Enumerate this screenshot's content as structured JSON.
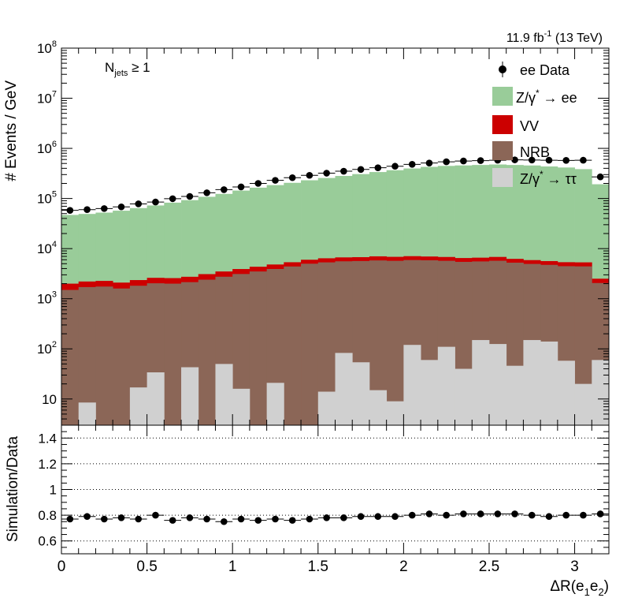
{
  "header": {
    "lumi_main": "11.9 fb",
    "lumi_exp": "-1",
    "lumi_energy": " (13 TeV)"
  },
  "annotation": {
    "njets_N": "N",
    "njets_sub": "jets",
    "njets_rest": " ≥ 1"
  },
  "legend": {
    "data": "ee Data",
    "zee_pre": "Z/γ",
    "zee_sup": "*",
    "zee_post": " → ee",
    "vv": "VV",
    "nrb": "NRB",
    "ztt_pre": "Z/γ",
    "ztt_sup": "*",
    "ztt_post": " → ττ"
  },
  "colors": {
    "zee": "#99cc99",
    "vv": "#cc0000",
    "nrb": "#8b6657",
    "ztt": "#d0d0d0",
    "data": "#000000"
  },
  "chart_data": [
    {
      "type": "bar",
      "stacked": true,
      "log_y": true,
      "title": "",
      "ylabel": "# Events / GeV",
      "xlim": [
        0,
        3.2
      ],
      "ylim": [
        3,
        100000000
      ],
      "y_ticks": [
        {
          "value": 10,
          "label": "10"
        },
        {
          "value": 100,
          "base": "10",
          "exp": "2"
        },
        {
          "value": 1000,
          "base": "10",
          "exp": "3"
        },
        {
          "value": 10000,
          "base": "10",
          "exp": "4"
        },
        {
          "value": 100000,
          "base": "10",
          "exp": "5"
        },
        {
          "value": 1000000,
          "base": "10",
          "exp": "6"
        },
        {
          "value": 10000000,
          "base": "10",
          "exp": "7"
        },
        {
          "value": 100000000,
          "base": "10",
          "exp": "8"
        }
      ],
      "bin_edges": [
        0,
        0.1,
        0.2,
        0.3,
        0.4,
        0.5,
        0.6,
        0.7,
        0.8,
        0.9,
        1.0,
        1.1,
        1.2,
        1.3,
        1.4,
        1.5,
        1.6,
        1.7,
        1.8,
        1.9,
        2.0,
        2.1,
        2.2,
        2.3,
        2.4,
        2.5,
        2.6,
        2.7,
        2.8,
        2.9,
        3.0,
        3.1,
        3.2
      ],
      "series": [
        {
          "name": "Z/γ* → ττ",
          "key": "ztt",
          "values": [
            0,
            8.5,
            0,
            0,
            17,
            34,
            0,
            43,
            0,
            50,
            16,
            0,
            21,
            0,
            0,
            14,
            83,
            54,
            15,
            9,
            120,
            60,
            110,
            40,
            150,
            125,
            46,
            150,
            140,
            58,
            20,
            60
          ]
        },
        {
          "name": "NRB",
          "key": "nrb",
          "values": [
            1500,
            1700,
            1750,
            1600,
            1800,
            2000,
            2000,
            2100,
            2400,
            2700,
            3100,
            3500,
            3900,
            4400,
            5000,
            5300,
            5500,
            5600,
            5800,
            5700,
            5800,
            5800,
            5600,
            5400,
            5400,
            5600,
            5200,
            4800,
            4600,
            4400,
            4400,
            2000
          ]
        },
        {
          "name": "VV",
          "key": "vv",
          "values": [
            500,
            500,
            520,
            500,
            540,
            580,
            580,
            600,
            700,
            750,
            800,
            850,
            900,
            950,
            1000,
            1100,
            1100,
            1100,
            1200,
            1150,
            1150,
            1100,
            1100,
            1050,
            1050,
            1100,
            1000,
            950,
            900,
            900,
            900,
            450
          ]
        },
        {
          "name": "Z/γ* → ee",
          "key": "zee",
          "values": [
            45000,
            47000,
            50000,
            55000,
            62000,
            70000,
            80000,
            90000,
            105000,
            120000,
            140000,
            160000,
            180000,
            200000,
            225000,
            250000,
            275000,
            300000,
            330000,
            360000,
            390000,
            420000,
            440000,
            450000,
            460000,
            470000,
            460000,
            450000,
            430000,
            410000,
            380000,
            190000
          ]
        },
        {
          "name": "ee Data",
          "key": "data",
          "style": "points",
          "values": [
            58000,
            60000,
            63000,
            68000,
            78000,
            85000,
            99000,
            110000,
            130000,
            150000,
            170000,
            200000,
            230000,
            260000,
            290000,
            320000,
            350000,
            380000,
            410000,
            440000,
            480000,
            510000,
            540000,
            560000,
            570000,
            580000,
            590000,
            585000,
            580000,
            575000,
            580000,
            270000
          ]
        }
      ]
    },
    {
      "type": "scatter",
      "title": "",
      "xlabel_pre": "ΔR(e",
      "xlabel_sub1": "1",
      "xlabel_mid": "e",
      "xlabel_sub2": "2",
      "xlabel_post": ")",
      "ylabel": "Simulation/Data",
      "xlim": [
        0,
        3.2
      ],
      "ylim": [
        0.5,
        1.5
      ],
      "x_ticks": [
        "0",
        "0.5",
        "1",
        "1.5",
        "2",
        "2.5",
        "3"
      ],
      "x_tick_values": [
        0,
        0.5,
        1,
        1.5,
        2,
        2.5,
        3
      ],
      "y_ticks": [
        "0.6",
        "0.8",
        "1",
        "1.2",
        "1.4"
      ],
      "y_tick_values": [
        0.6,
        0.8,
        1.0,
        1.2,
        1.4
      ],
      "grid": "dotted horizontal",
      "x": [
        0.05,
        0.15,
        0.25,
        0.35,
        0.45,
        0.55,
        0.65,
        0.75,
        0.85,
        0.95,
        1.05,
        1.15,
        1.25,
        1.35,
        1.45,
        1.55,
        1.65,
        1.75,
        1.85,
        1.95,
        2.05,
        2.15,
        2.25,
        2.35,
        2.45,
        2.55,
        2.65,
        2.75,
        2.85,
        2.95,
        3.05,
        3.15
      ],
      "y": [
        0.77,
        0.79,
        0.77,
        0.78,
        0.77,
        0.8,
        0.76,
        0.78,
        0.77,
        0.75,
        0.77,
        0.76,
        0.77,
        0.76,
        0.77,
        0.78,
        0.78,
        0.79,
        0.79,
        0.79,
        0.8,
        0.81,
        0.8,
        0.81,
        0.81,
        0.81,
        0.81,
        0.8,
        0.79,
        0.8,
        0.8,
        0.81
      ]
    }
  ]
}
